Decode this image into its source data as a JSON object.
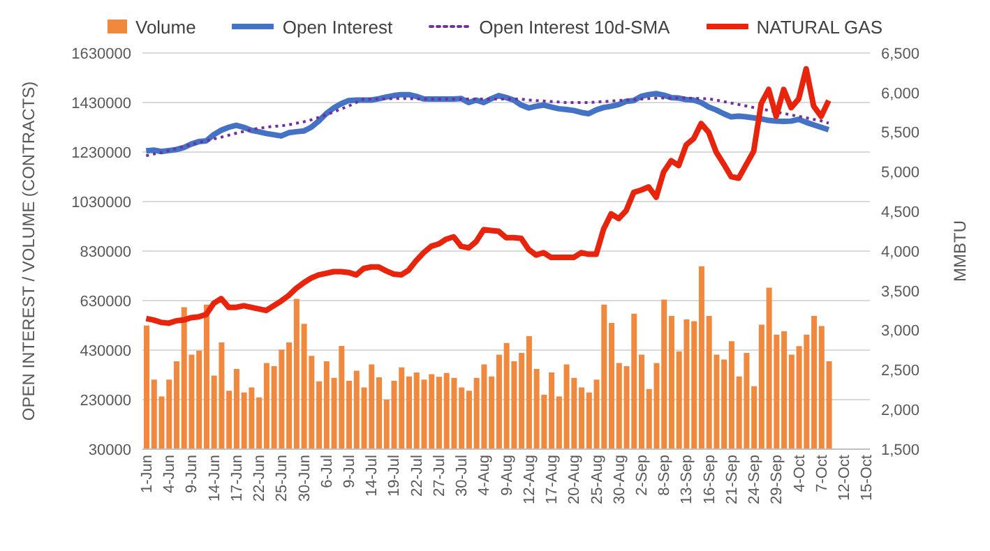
{
  "chart_data": {
    "type": "bar",
    "ylabel": "OPEN INTEREST / VOLUME (CONTRACTS)",
    "y2label": "MMBTU",
    "legend": "top",
    "grid": "y",
    "marker": "none",
    "categories": [
      "1-Jun",
      null,
      null,
      "4-Jun",
      null,
      null,
      "9-Jun",
      null,
      null,
      "14-Jun",
      null,
      null,
      "17-Jun",
      null,
      null,
      "22-Jun",
      null,
      null,
      "25-Jun",
      null,
      null,
      "30-Jun",
      null,
      null,
      "6-Jul",
      null,
      null,
      "9-Jul",
      null,
      null,
      "14-Jul",
      null,
      null,
      "19-Jul",
      null,
      null,
      "22-Jul",
      null,
      null,
      "27-Jul",
      null,
      null,
      "30-Jul",
      null,
      null,
      "4-Aug",
      null,
      null,
      "9-Aug",
      null,
      null,
      "12-Aug",
      null,
      null,
      "17-Aug",
      null,
      null,
      "20-Aug",
      null,
      null,
      "25-Aug",
      null,
      null,
      "30-Aug",
      null,
      null,
      "2-Sep",
      null,
      null,
      "8-Sep",
      null,
      null,
      "13-Sep",
      null,
      null,
      "16-Sep",
      null,
      null,
      "21-Sep",
      null,
      null,
      "24-Sep",
      null,
      null,
      "29-Sep",
      null,
      null,
      "4-Oct",
      null,
      null,
      "7-Oct",
      null,
      null,
      "12-Oct",
      null,
      null,
      "15-Oct"
    ],
    "ylim": [
      30000,
      1630000
    ],
    "yticks": [
      30000,
      230000,
      430000,
      630000,
      830000,
      1030000,
      1230000,
      1430000,
      1630000
    ],
    "y2lim": [
      1500,
      6500
    ],
    "y2ticks": [
      {
        "value": 1500,
        "label": "1,500"
      },
      {
        "value": 2000,
        "label": "2,000"
      },
      {
        "value": 2500,
        "label": "2,500"
      },
      {
        "value": 3000,
        "label": "3,000"
      },
      {
        "value": 3500,
        "label": "3,500"
      },
      {
        "value": 4000,
        "label": "4,000"
      },
      {
        "value": 4500,
        "label": "4,500"
      },
      {
        "value": 5000,
        "label": "5,000"
      },
      {
        "value": 5500,
        "label": "5,500"
      },
      {
        "value": 6000,
        "label": "6,000"
      },
      {
        "value": 6500,
        "label": "6,500"
      }
    ],
    "series": [
      {
        "name": "Volume",
        "color": "#f0883e",
        "values": [
          529000,
          311000,
          243000,
          311000,
          385000,
          603000,
          412000,
          428000,
          614000,
          327000,
          461000,
          266000,
          354000,
          259000,
          279000,
          239000,
          378000,
          365000,
          432000,
          461000,
          637000,
          536000,
          407000,
          304000,
          385000,
          318000,
          447000,
          306000,
          347000,
          279000,
          372000,
          320000,
          230000,
          306000,
          360000,
          324000,
          340000,
          311000,
          333000,
          322000,
          338000,
          318000,
          279000,
          266000,
          318000,
          372000,
          324000,
          412000,
          459000,
          385000,
          419000,
          486000,
          354000,
          250000,
          340000,
          243000,
          372000,
          318000,
          279000,
          259000,
          311000,
          614000,
          540000,
          378000,
          365000,
          577000,
          412000,
          273000,
          378000,
          634000,
          568000,
          425000,
          554000,
          547000,
          769000,
          568000,
          412000,
          392000,
          466000,
          324000,
          419000,
          284000,
          533000,
          682000,
          493000,
          506000,
          412000,
          446000,
          493000,
          568000,
          527000,
          385000,
          null,
          null,
          null,
          null,
          null
        ]
      },
      {
        "name": "Open Interest",
        "type": "line",
        "color": "#4472c4",
        "values": [
          1235000,
          1238000,
          1232000,
          1236000,
          1240000,
          1248000,
          1262000,
          1272000,
          1275000,
          1300000,
          1318000,
          1330000,
          1338000,
          1330000,
          1318000,
          1312000,
          1305000,
          1300000,
          1295000,
          1308000,
          1312000,
          1315000,
          1330000,
          1355000,
          1385000,
          1408000,
          1425000,
          1438000,
          1440000,
          1440000,
          1440000,
          1445000,
          1452000,
          1458000,
          1462000,
          1462000,
          1455000,
          1445000,
          1444000,
          1444000,
          1444000,
          1444000,
          1446000,
          1430000,
          1440000,
          1430000,
          1445000,
          1458000,
          1450000,
          1440000,
          1420000,
          1408000,
          1415000,
          1420000,
          1412000,
          1405000,
          1402000,
          1398000,
          1390000,
          1385000,
          1400000,
          1410000,
          1415000,
          1422000,
          1435000,
          1438000,
          1455000,
          1462000,
          1466000,
          1460000,
          1450000,
          1448000,
          1442000,
          1440000,
          1430000,
          1412000,
          1400000,
          1385000,
          1372000,
          1375000,
          1372000,
          1368000,
          1364000,
          1358000,
          1355000,
          1354000,
          1355000,
          1362000,
          1350000,
          1340000,
          1330000,
          1320000,
          null,
          null,
          null,
          null,
          null
        ]
      },
      {
        "name": "Open Interest 10d-SMA",
        "type": "line",
        "line_style": "dotted",
        "color": "#7030a0",
        "values": [
          1215000,
          1222000,
          1228000,
          1236000,
          1244000,
          1252000,
          1260000,
          1268000,
          1276000,
          1283000,
          1290000,
          1298000,
          1306000,
          1313000,
          1320000,
          1326000,
          1330000,
          1334000,
          1336000,
          1340000,
          1346000,
          1352000,
          1360000,
          1370000,
          1380000,
          1392000,
          1404000,
          1416000,
          1430000,
          1444000,
          1444000,
          1444000,
          1445000,
          1446000,
          1446000,
          1446000,
          1445000,
          1444000,
          1444000,
          1444000,
          1444000,
          1444000,
          1444000,
          1444000,
          1444000,
          1444000,
          1444000,
          1444000,
          1444000,
          1444000,
          1444000,
          1440000,
          1438000,
          1436000,
          1434000,
          1432000,
          1430000,
          1430000,
          1430000,
          1430000,
          1432000,
          1434000,
          1436000,
          1438000,
          1440000,
          1442000,
          1444000,
          1446000,
          1448000,
          1448000,
          1448000,
          1448000,
          1448000,
          1447000,
          1446000,
          1445000,
          1440000,
          1434000,
          1428000,
          1422000,
          1416000,
          1410000,
          1404000,
          1398000,
          1392000,
          1386000,
          1380000,
          1374000,
          1368000,
          1362000,
          1356000,
          1347000,
          null,
          null,
          null,
          null,
          null
        ]
      },
      {
        "name": "NATURAL GAS",
        "type": "line",
        "axis": "y2",
        "color": "#e8240c",
        "values": [
          3150,
          3130,
          3100,
          3090,
          3120,
          3130,
          3160,
          3170,
          3200,
          3340,
          3400,
          3290,
          3290,
          3310,
          3290,
          3270,
          3250,
          3310,
          3370,
          3440,
          3530,
          3600,
          3660,
          3700,
          3720,
          3740,
          3740,
          3730,
          3700,
          3780,
          3800,
          3800,
          3750,
          3710,
          3700,
          3760,
          3880,
          3980,
          4060,
          4090,
          4150,
          4180,
          4060,
          4040,
          4120,
          4270,
          4260,
          4250,
          4170,
          4170,
          4160,
          4020,
          3950,
          3980,
          3920,
          3920,
          3920,
          3920,
          3980,
          3960,
          3960,
          4280,
          4470,
          4410,
          4510,
          4740,
          4770,
          4810,
          4680,
          5000,
          5140,
          5080,
          5340,
          5420,
          5610,
          5500,
          5250,
          5100,
          4940,
          4920,
          5090,
          5260,
          5860,
          6040,
          5700,
          6040,
          5810,
          5920,
          6300,
          5830,
          5700,
          5900,
          null,
          null,
          null,
          null,
          null
        ]
      }
    ]
  }
}
